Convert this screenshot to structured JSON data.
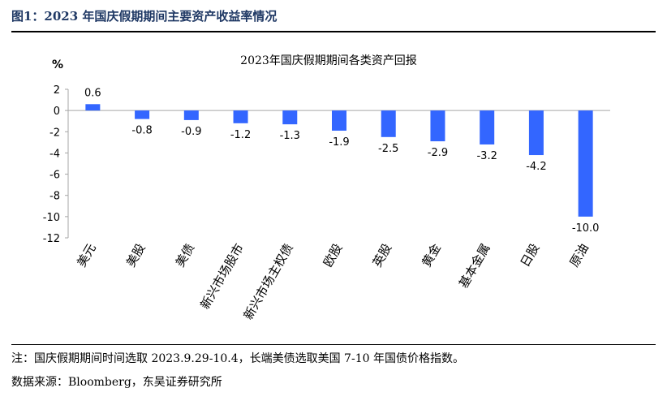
{
  "figure": {
    "title": "图1：2023 年国庆假期期间主要资产收益率情况",
    "note": "注：国庆假期期间时间选取 2023.9.29-10.4，长端美债选取美国 7-10 年国债价格指数。",
    "source": "数据来源：Bloomberg，东吴证券研究所"
  },
  "colors": {
    "bar": "#3366ff",
    "axis": "#a6a6a6",
    "title_accent": "#1f3864"
  },
  "chart_data": {
    "type": "bar",
    "title": "2023年国庆假期期间各类资产回报",
    "ylabel": "%",
    "xlabel": "",
    "categories": [
      "美元",
      "美股",
      "美债",
      "新兴市场股市",
      "新兴市场主权债",
      "欧股",
      "英股",
      "黄金",
      "基本金属",
      "日股",
      "原油"
    ],
    "values": [
      0.6,
      -0.8,
      -0.9,
      -1.2,
      -1.3,
      -1.9,
      -2.5,
      -2.9,
      -3.2,
      -4.2,
      -10.0
    ],
    "data_labels": [
      "0.6",
      "-0.8",
      "-0.9",
      "-1.2",
      "-1.3",
      "-1.9",
      "-2.5",
      "-2.9",
      "-3.2",
      "-4.2",
      "-10.0"
    ],
    "ylim": [
      -12,
      2
    ],
    "yticks": [
      2,
      0,
      -2,
      -4,
      -6,
      -8,
      -10,
      -12
    ],
    "grid": false,
    "legend": "none"
  }
}
